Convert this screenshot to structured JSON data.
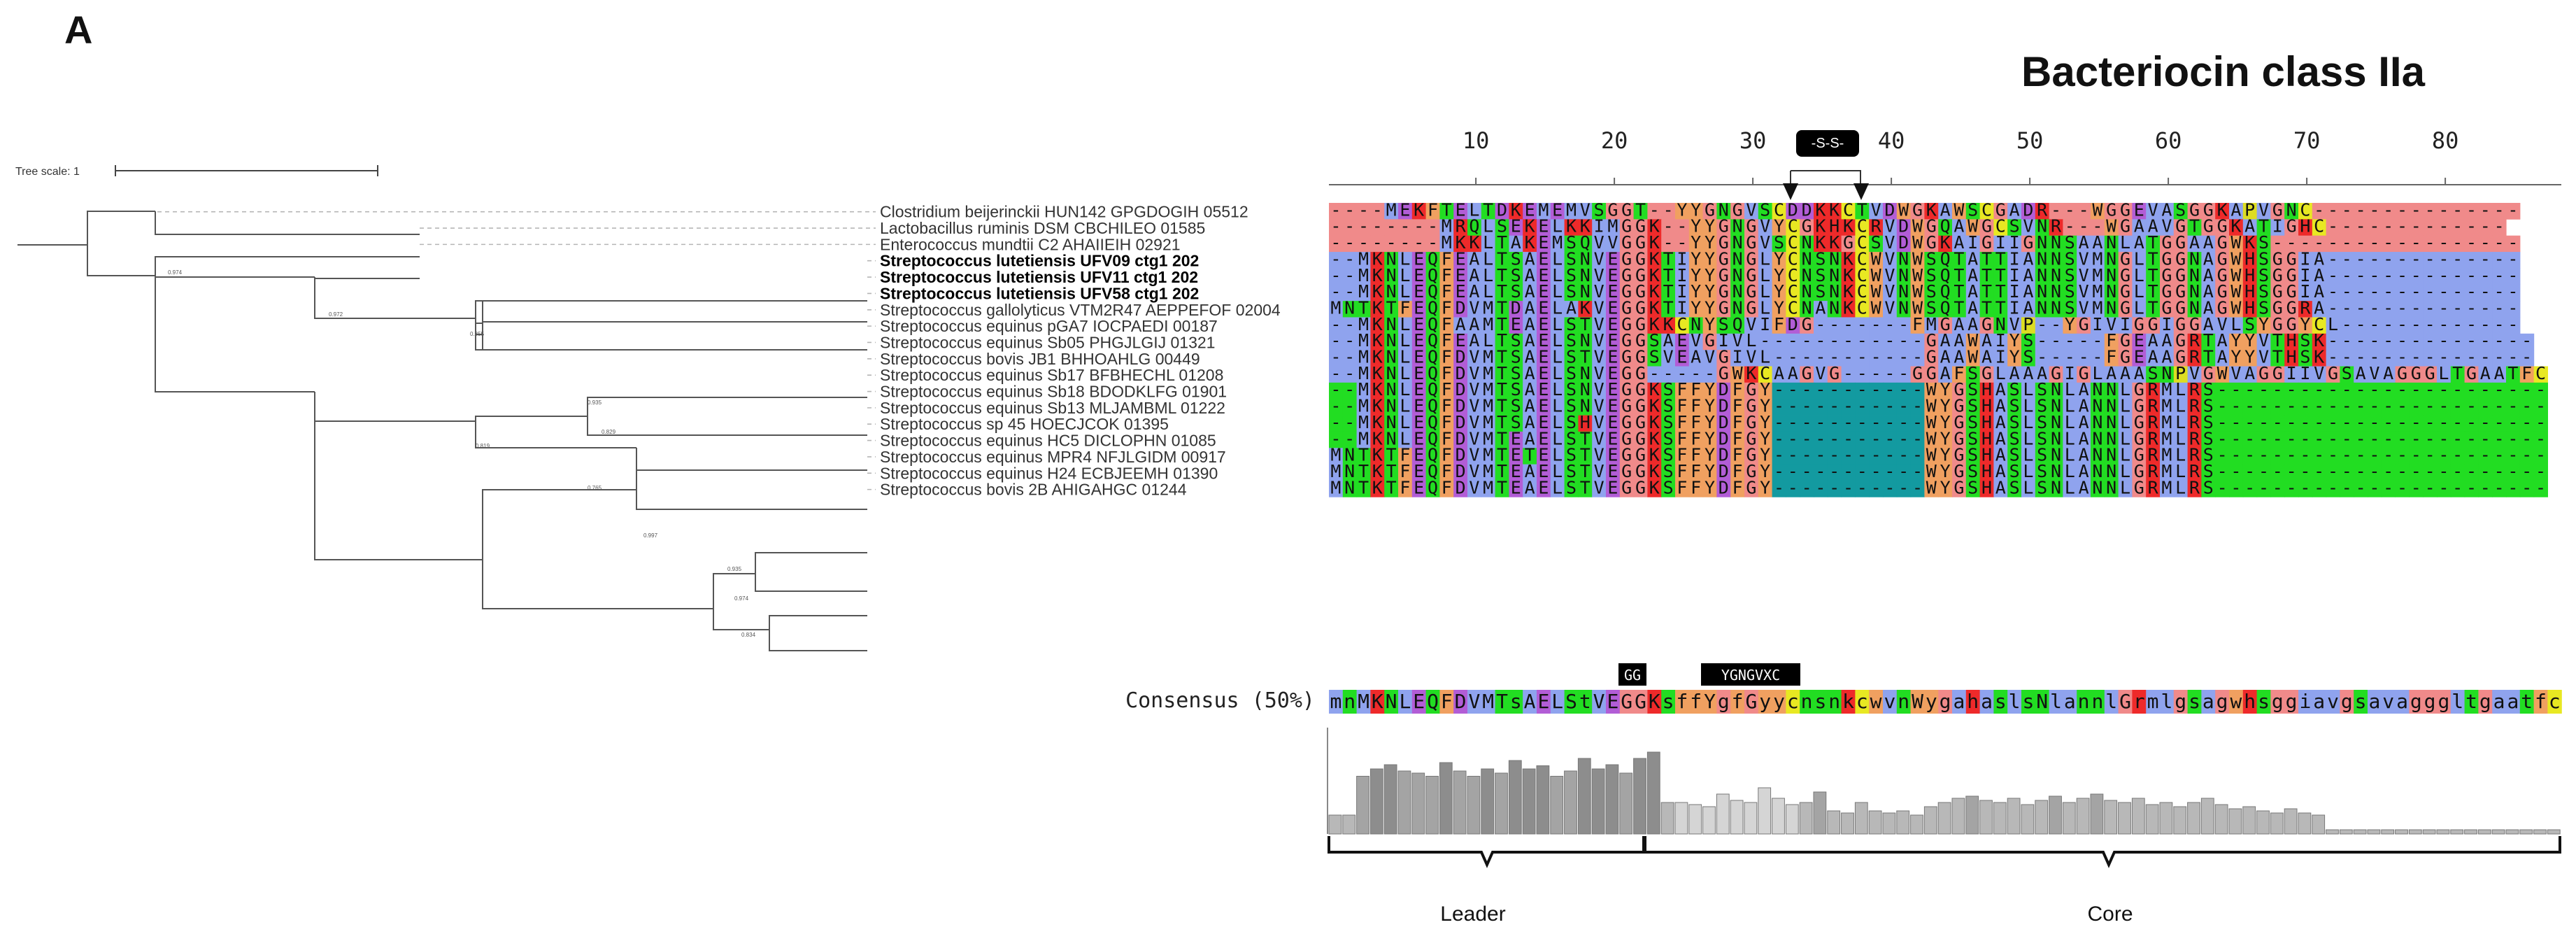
{
  "panel_letter": "A",
  "title": "Bacteriocin class IIa",
  "tree_scale_label": "Tree scale: 1",
  "position_ticks": [
    10,
    20,
    30,
    40,
    50,
    60,
    70,
    80
  ],
  "disulfide_label": "-S-S-",
  "motif_labels": {
    "gg": "GG",
    "ygngv": "YGNGVXC"
  },
  "consensus_label": "Consensus (50%)",
  "consensus_sequence": "mnMKNLEQFDVMTsAELStVEGGKsffYgfGyycnsnkcwvnWygahaslsNlannlGrmlgsagwhsggiavgsavagggltgaatfc",
  "region_labels": {
    "leader": "Leader",
    "core": "Core"
  },
  "taxa": [
    {
      "name": "Clostridium beijerinckii HUN142 GPGDOGIH 05512",
      "bold": false,
      "seq": "----MEKFTELTDKEMEMVSGGT--YYGNGVSCDDKKCTVDWGKAWSCGADR---WGGEVASGGKAPVGNC---------------"
    },
    {
      "name": "Lactobacillus ruminis DSM CBCHILEO 01585",
      "bold": false,
      "seq": "--------MRQLSEKELKKIMGGK--YYGNGVYCGKHKCRVDWGQAWGCSVNR---WGAAVGTGGKATIGHC-------------"
    },
    {
      "name": "Enterococcus mundtii C2 AHAIIEIH 02921",
      "bold": false,
      "seq": "--------MKKLTAKEMSQVVGGK--YYGNGVSCNKKGCSVDWGKAIGIIGNNSAANLATGGAAGWKS------------------"
    },
    {
      "name": "Streptococcus lutetiensis UFV09 ctg1 202",
      "bold": true,
      "seq": "--MKNLEQFEALTSAELSNVEGGKTIYYGNGLYCNSNKCWVNWSQTATTIANNSVMNGLTGGNAGWHSGGIA--------------"
    },
    {
      "name": "Streptococcus lutetiensis UFV11 ctg1 202",
      "bold": true,
      "seq": "--MKNLEQFEALTSAELSNVEGGKTIYYGNGLYCNSNKCWVNWSQTATTIANNSVMNGLTGGNAGWHSGGIA--------------"
    },
    {
      "name": "Streptococcus lutetiensis UFV58 ctg1 202",
      "bold": true,
      "seq": "--MKNLEQFEALTSAELSNVEGGKTIYYGNGLYCNSNKCWVNWSQTATTIANNSVMNGLTGGNAGWHSGGIA--------------"
    },
    {
      "name": "Streptococcus gallolyticus VTM2R47 AEPPEFOF 02004",
      "bold": false,
      "seq": "MNTKTFEQFDVMTDAELAKVEGGKTIYYGNGLYCNANKCWVNWSQTATTIANNSVMNGLTGGNAGWHSGGRA--------------"
    },
    {
      "name": "Streptococcus equinus pGA7 IOCPAEDI 00187",
      "bold": false,
      "seq": "--MKNLEQFAAMTEAELSTVEGGKKCNYSQVIFDG-------FMGAAGNVP--YGIVIGGIGGAVLSYGGYCL-------------"
    },
    {
      "name": "Streptococcus equinus Sb05 PHGJLGIJ 01321",
      "bold": false,
      "seq": "--MKNLEQFEALTSAELSNVEGGSAEVGIVL------------GAAWAIYS-----FGEAAGRTAYYVTHSK---------------"
    },
    {
      "name": "Streptococcus bovis JB1 BHHOAHLG 00449",
      "bold": false,
      "seq": "--MKNLEQFDVMTSAELSTVEGGSVEAVGIVL-----------GAAWAIYS-----FGEAAGRTAYYVTHSK---------------"
    },
    {
      "name": "Streptococcus equinus Sb17 BFBHECHL 01208",
      "bold": false,
      "seq": "--MKNLEQFDVMTSAELSNVEGG-----GWKCAAGVG-----GGAFSGLAAAGIGLAAASNPVGWVAGGIIVGSAVAGGGLTGAATFC"
    },
    {
      "name": "Streptococcus equinus Sb18 BDODKLFG 01901",
      "bold": false,
      "seq": "--MKNLEQFDVMTSAELSNVEGGKSFFYDFGY-----------WYGSHASLSNLANNLGRMLRS------------------------"
    },
    {
      "name": "Streptococcus equinus Sb13 MLJAMBML 01222",
      "bold": false,
      "seq": "--MKNLEQFDVMTSAELSNVEGGKSFFYDFGY-----------WYGSHASLSNLANNLGRMLRS------------------------"
    },
    {
      "name": "Streptococcus sp 45 HOECJCOK 01395",
      "bold": false,
      "seq": "--MKNLEQFDVMTSAELSHVEGGKSFFYDFGY-----------WYGSHASLSNLANNLGRMLRS------------------------"
    },
    {
      "name": "Streptococcus equinus HC5 DICLOPHN 01085",
      "bold": false,
      "seq": "--MKNLEQFDVMTEAELSTVEGGKSFFYDFGY-----------WYGSHASLSNLANNLGRMLRS------------------------"
    },
    {
      "name": "Streptococcus equinus MPR4 NFJLGIDM 00917",
      "bold": false,
      "seq": "MNTKTFEQFDVMTETELSTVEGGKSFFYDFGY-----------WYGSHASLSNLANNLGRMLRS------------------------"
    },
    {
      "name": "Streptococcus equinus H24 ECBJEEMH 01390",
      "bold": false,
      "seq": "MNTKTFEQFDVMTEAELSTVEGGKSFFYDFGY-----------WYGSHASLSNLANNLGRMLRS------------------------"
    },
    {
      "name": "Streptococcus bovis 2B AHIGAHGC 01244",
      "bold": false,
      "seq": "MNTKTFEQFDVMTEAELSTVEGGKSFFYDFGY-----------WYGSHASLSNLANNLGRMLRS------------------------"
    }
  ],
  "node_support": [
    "0.974",
    "0.972",
    "0.855",
    "0.935",
    "0.829",
    "0.819",
    "0.765",
    "0.997",
    "0.935",
    "0.974",
    "0.834"
  ],
  "conservation": [
    0.18,
    0.18,
    0.55,
    0.62,
    0.66,
    0.6,
    0.58,
    0.55,
    0.68,
    0.6,
    0.55,
    0.62,
    0.58,
    0.7,
    0.62,
    0.65,
    0.55,
    0.6,
    0.72,
    0.62,
    0.66,
    0.58,
    0.72,
    0.78,
    0.3,
    0.3,
    0.28,
    0.26,
    0.38,
    0.32,
    0.3,
    0.44,
    0.34,
    0.28,
    0.3,
    0.4,
    0.22,
    0.2,
    0.3,
    0.22,
    0.2,
    0.22,
    0.18,
    0.26,
    0.3,
    0.34,
    0.36,
    0.32,
    0.3,
    0.34,
    0.28,
    0.32,
    0.36,
    0.3,
    0.34,
    0.38,
    0.32,
    0.3,
    0.34,
    0.28,
    0.3,
    0.26,
    0.3,
    0.34,
    0.28,
    0.24,
    0.26,
    0.22,
    0.2,
    0.24,
    0.2,
    0.18,
    0.04,
    0.04,
    0.04,
    0.04,
    0.04,
    0.04,
    0.04,
    0.04,
    0.04,
    0.04,
    0.04,
    0.04,
    0.04,
    0.04,
    0.04,
    0.04,
    0.04
  ]
}
